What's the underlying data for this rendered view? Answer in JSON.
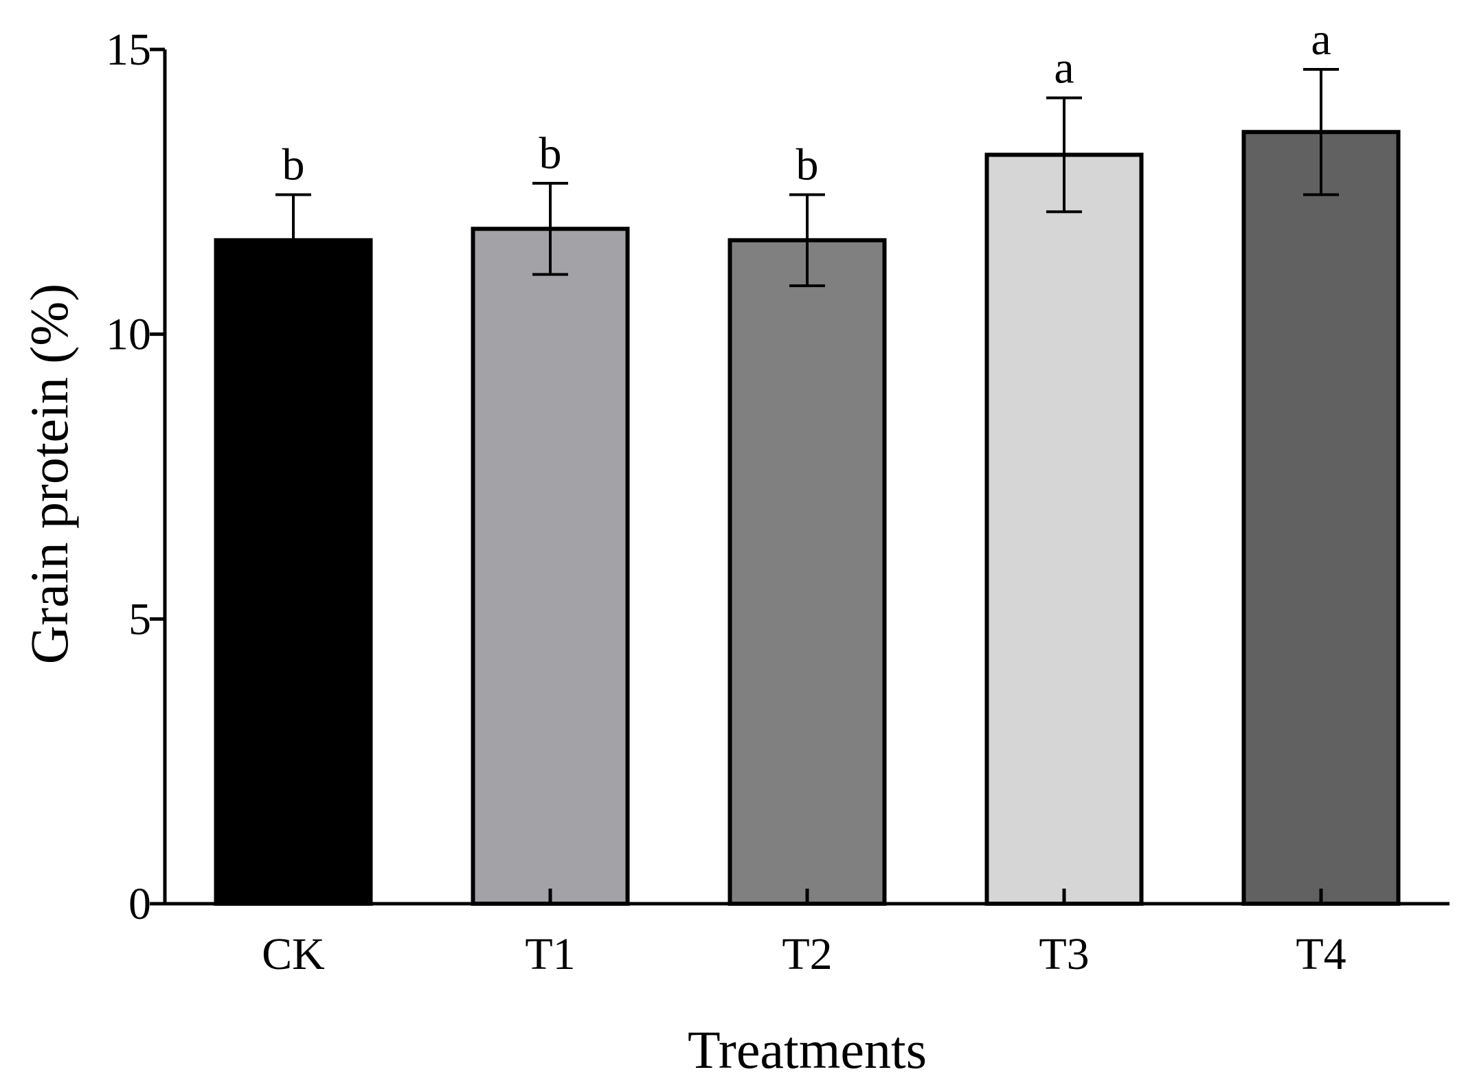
{
  "chart_data": {
    "type": "bar",
    "title": "",
    "xlabel": "Treatments",
    "ylabel": "Grain protein (%)",
    "ylim": [
      0,
      15
    ],
    "yticks": [
      0,
      5,
      10,
      15
    ],
    "ytick_labels": [
      "0",
      "5",
      "10",
      "15"
    ],
    "categories": [
      "CK",
      "T1",
      "T2",
      "T3",
      "T4"
    ],
    "values": [
      11.65,
      11.85,
      11.65,
      13.15,
      13.55
    ],
    "errors": [
      0.8,
      0.8,
      0.8,
      1.0,
      1.1
    ],
    "significance": [
      "b",
      "b",
      "b",
      "a",
      "a"
    ],
    "bar_colors": [
      "#000000",
      "#a3a2a6",
      "#808080",
      "#d6d6d6",
      "#616161"
    ],
    "grid": false,
    "legend": "none"
  }
}
